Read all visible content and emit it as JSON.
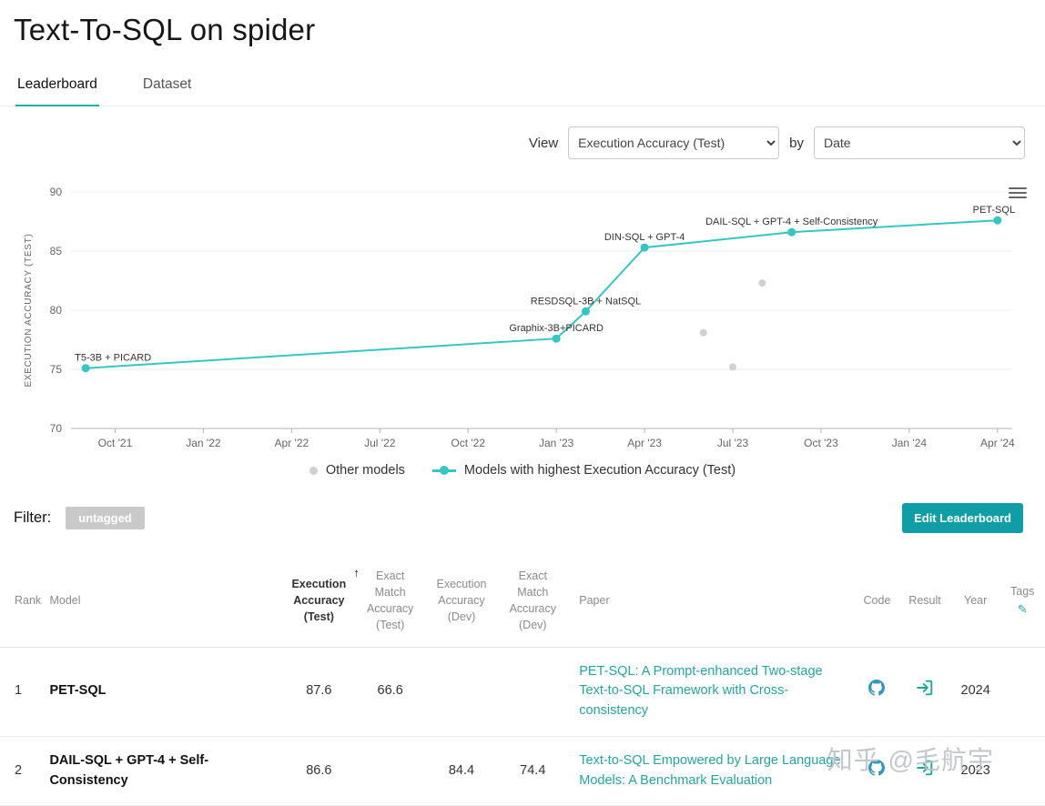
{
  "colors": {
    "accent": "#1fb2aa",
    "link": "#24a5a0",
    "button": "#109ea6",
    "chart_line": "#34c6c3",
    "other_models": "#d0d0d0",
    "github_icon": "#3596c0",
    "result_icon": "#18a999"
  },
  "page": {
    "title": "Text-To-SQL on spider"
  },
  "tabs": [
    {
      "label": "Leaderboard",
      "active": true
    },
    {
      "label": "Dataset",
      "active": false
    }
  ],
  "view_controls": {
    "view_label": "View",
    "metric_value": "Execution Accuracy (Test)",
    "by_label": "by",
    "group_value": "Date"
  },
  "chart_data": {
    "type": "line",
    "title": "",
    "xlabel": "",
    "ylabel": "EXECUTION ACCURACY (TEST)",
    "ylim": [
      70,
      90
    ],
    "yticks": [
      70,
      75,
      80,
      85,
      90
    ],
    "grid": true,
    "legend_position": "bottom",
    "xticks": [
      {
        "label": "Oct '21",
        "date": "2021-10"
      },
      {
        "label": "Jan '22",
        "date": "2022-01"
      },
      {
        "label": "Apr '22",
        "date": "2022-04"
      },
      {
        "label": "Jul '22",
        "date": "2022-07"
      },
      {
        "label": "Oct '22",
        "date": "2022-10"
      },
      {
        "label": "Jan '23",
        "date": "2023-01"
      },
      {
        "label": "Apr '23",
        "date": "2023-04"
      },
      {
        "label": "Jul '23",
        "date": "2023-07"
      },
      {
        "label": "Oct '23",
        "date": "2023-10"
      },
      {
        "label": "Jan '24",
        "date": "2024-01"
      },
      {
        "label": "Apr '24",
        "date": "2024-04"
      }
    ],
    "series": [
      {
        "name": "Models with highest Execution Accuracy (Test)",
        "color": "#34c6c3",
        "points": [
          {
            "label": "T5-3B + PICARD",
            "date": "2021-09",
            "value": 75.1,
            "label_dx": 30
          },
          {
            "label": "Graphix-3B+PICARD",
            "date": "2023-01",
            "value": 77.6
          },
          {
            "label": "RESDSQL-3B + NatSQL",
            "date": "2023-02",
            "value": 79.9
          },
          {
            "label": "DIN-SQL + GPT-4",
            "date": "2023-04",
            "value": 85.3
          },
          {
            "label": "DAIL-SQL + GPT-4 + Self-Consistency",
            "date": "2023-09",
            "value": 86.6
          },
          {
            "label": "PET-SQL",
            "date": "2024-04",
            "value": 87.6,
            "label_dx": -4
          }
        ]
      },
      {
        "name": "Other models",
        "color": "#d0d0d0",
        "points": [
          {
            "label": "",
            "date": "2023-06",
            "value": 78.1
          },
          {
            "label": "",
            "date": "2023-07",
            "value": 75.2
          },
          {
            "label": "",
            "date": "2023-08",
            "value": 82.3
          }
        ]
      }
    ],
    "legend": [
      {
        "label": "Other models",
        "swatch": "dot"
      },
      {
        "label": "Models with highest Execution Accuracy (Test)",
        "swatch": "line-dot"
      }
    ]
  },
  "filter": {
    "label": "Filter:",
    "tags": [
      "untagged"
    ]
  },
  "actions": {
    "edit_leaderboard": "Edit Leaderboard"
  },
  "table": {
    "columns": [
      {
        "key": "rank",
        "label": "Rank"
      },
      {
        "key": "model",
        "label": "Model"
      },
      {
        "key": "exec_test",
        "label": "Execution Accuracy (Test)",
        "sorted": "ascending"
      },
      {
        "key": "match_test",
        "label": "Exact Match Accuracy (Test)"
      },
      {
        "key": "exec_dev",
        "label": "Execution Accuracy (Dev)"
      },
      {
        "key": "match_dev",
        "label": "Exact Match Accuracy (Dev)"
      },
      {
        "key": "paper",
        "label": "Paper"
      },
      {
        "key": "code",
        "label": "Code"
      },
      {
        "key": "result",
        "label": "Result"
      },
      {
        "key": "year",
        "label": "Year"
      },
      {
        "key": "tags",
        "label": "Tags"
      }
    ],
    "rows": [
      {
        "rank": "1",
        "model": "PET-SQL",
        "exec_test": "87.6",
        "match_test": "66.6",
        "exec_dev": "",
        "match_dev": "",
        "paper": "PET-SQL: A Prompt-enhanced Two-stage Text-to-SQL Framework with Cross-consistency",
        "code": true,
        "result": true,
        "year": "2024",
        "tags": ""
      },
      {
        "rank": "2",
        "model": "DAIL-SQL + GPT-4 + Self-Consistency",
        "exec_test": "86.6",
        "match_test": "",
        "exec_dev": "84.4",
        "match_dev": "74.4",
        "paper": "Text-to-SQL Empowered by Large Language Models: A Benchmark Evaluation",
        "code": true,
        "result": true,
        "year": "2023",
        "tags": ""
      }
    ]
  },
  "watermark": "知乎 @毛航宇"
}
